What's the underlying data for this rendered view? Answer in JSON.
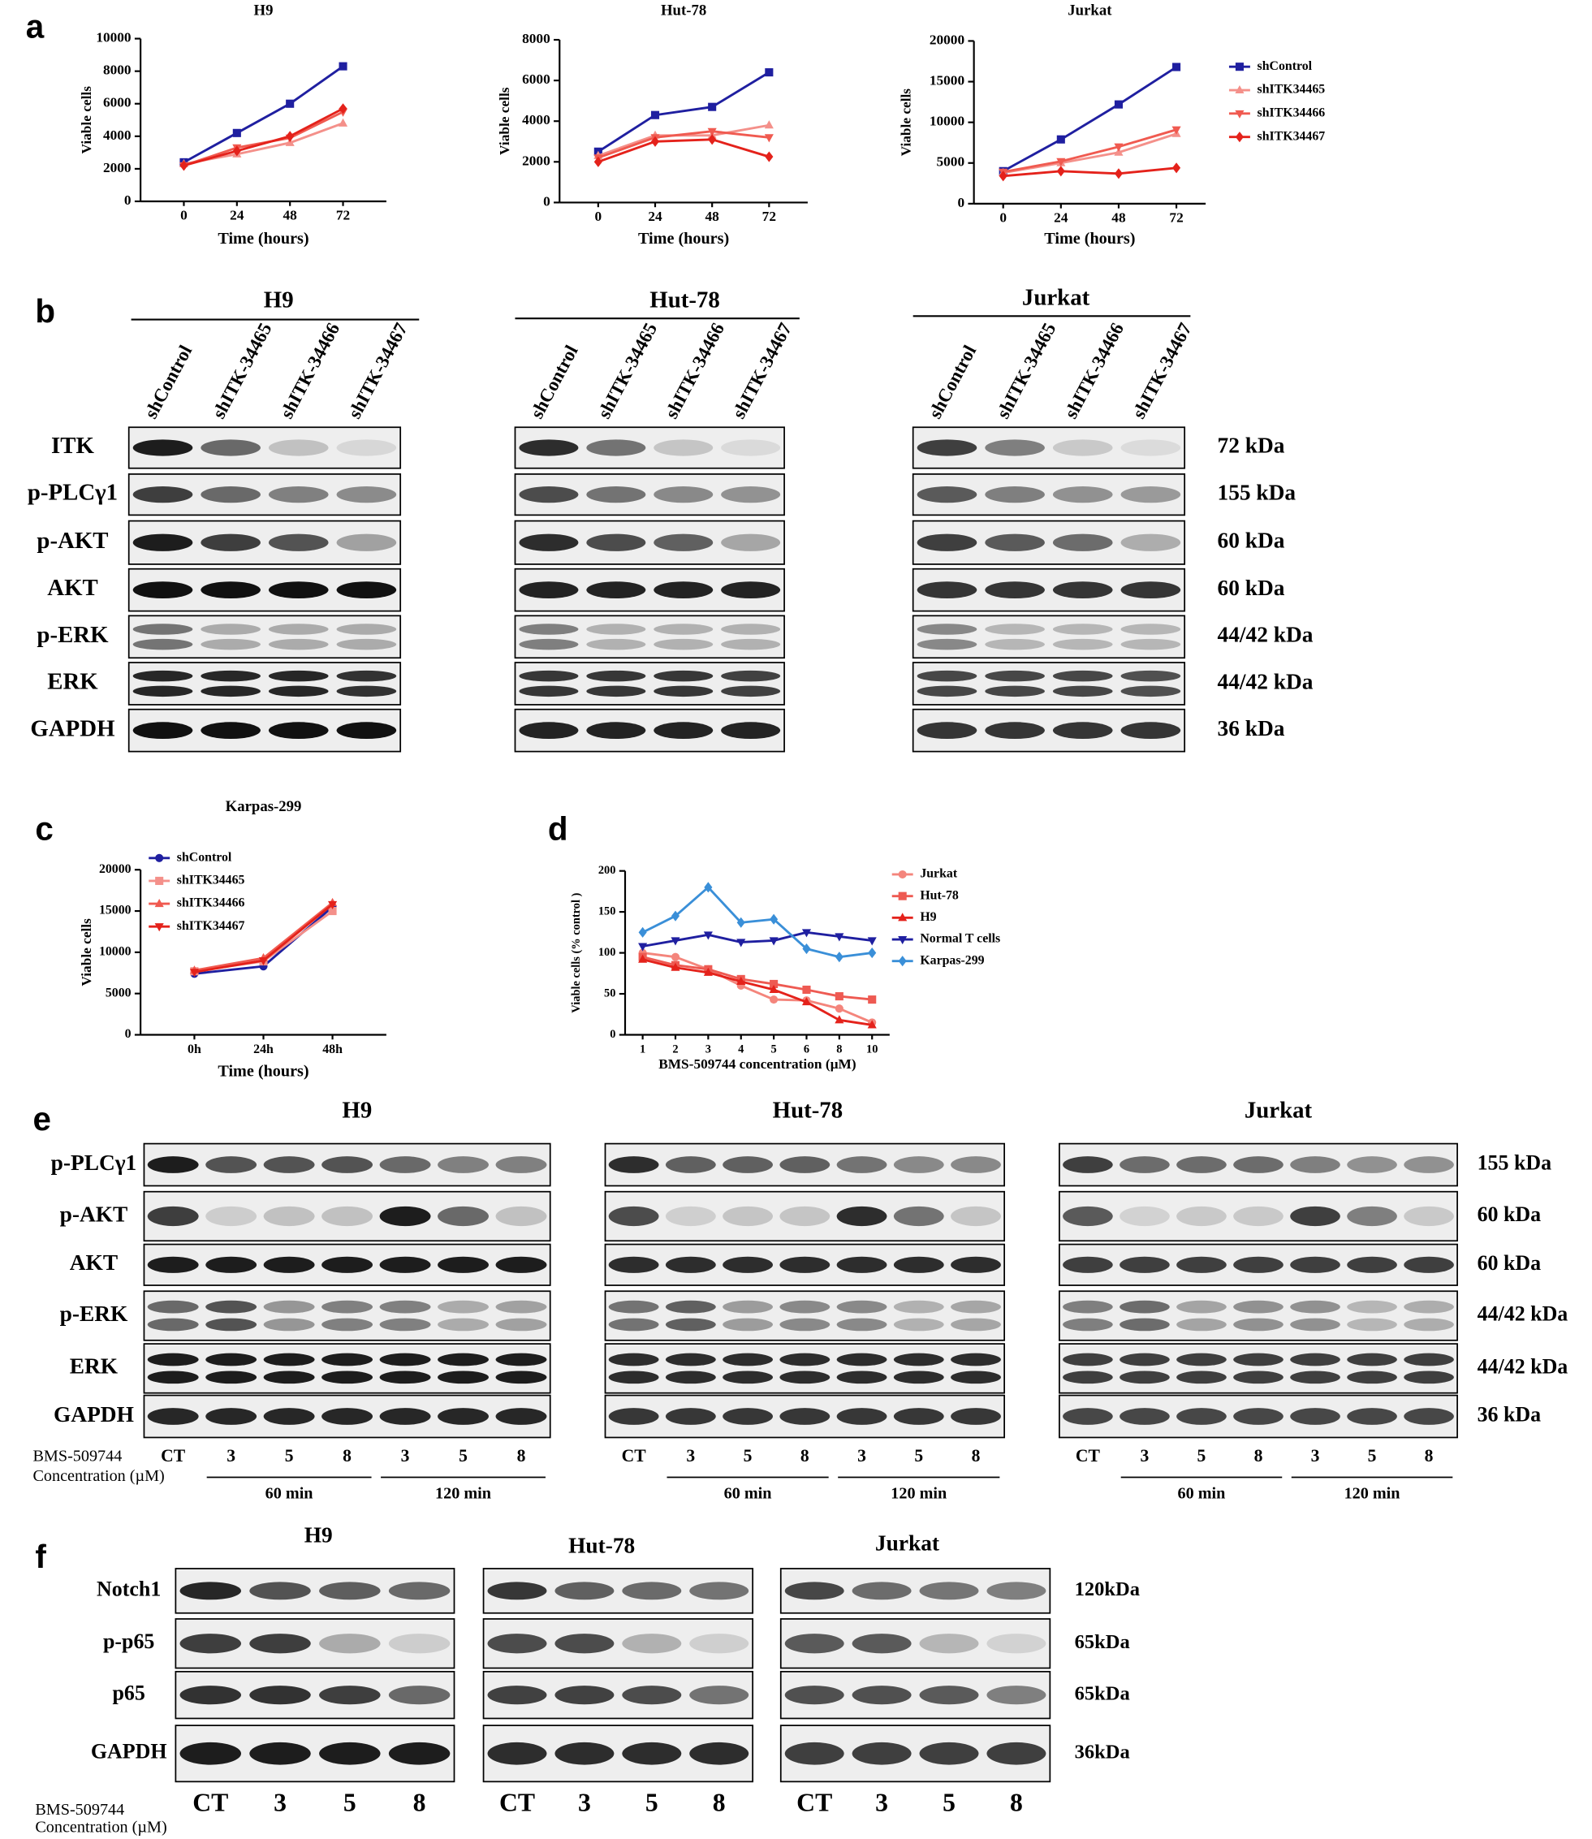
{
  "panel_labels": [
    "a",
    "b",
    "c",
    "d",
    "e",
    "f"
  ],
  "chart_data": [
    {
      "type": "line",
      "title": "H9",
      "xlabel": "Time (hours)",
      "ylabel": "Viable cells",
      "categories": [
        "0",
        "24",
        "48",
        "72"
      ],
      "ylim": [
        0,
        10000
      ],
      "yticks": [
        0,
        2000,
        4000,
        6000,
        8000,
        10000
      ],
      "series": [
        {
          "color": "#1f1fa0",
          "marker": "square",
          "values": [
            2400,
            4200,
            6000,
            8300
          ]
        },
        {
          "color": "#f4908a",
          "marker": "triangle",
          "values": [
            2300,
            2900,
            3600,
            4800
          ]
        },
        {
          "color": "#f05a50",
          "marker": "triangle-down",
          "values": [
            2200,
            3300,
            3900,
            5500
          ]
        },
        {
          "color": "#e4221b",
          "marker": "diamond",
          "values": [
            2200,
            3100,
            4000,
            5700
          ]
        }
      ]
    },
    {
      "type": "line",
      "title": "Hut-78",
      "xlabel": "Time (hours)",
      "ylabel": "Viable cells",
      "categories": [
        "0",
        "24",
        "48",
        "72"
      ],
      "ylim": [
        0,
        8000
      ],
      "yticks": [
        0,
        2000,
        4000,
        6000,
        8000
      ],
      "series": [
        {
          "color": "#1f1fa0",
          "marker": "square",
          "values": [
            2500,
            4300,
            4700,
            6400
          ]
        },
        {
          "color": "#f4908a",
          "marker": "triangle",
          "values": [
            2300,
            3300,
            3300,
            3800
          ]
        },
        {
          "color": "#f05a50",
          "marker": "triangle-down",
          "values": [
            2200,
            3200,
            3500,
            3200
          ]
        },
        {
          "color": "#e4221b",
          "marker": "diamond",
          "values": [
            2000,
            3000,
            3100,
            2250
          ]
        }
      ]
    },
    {
      "type": "line",
      "title": "Jurkat",
      "xlabel": "Time (hours)",
      "ylabel": "Viable cells",
      "categories": [
        "0",
        "24",
        "48",
        "72"
      ],
      "ylim": [
        0,
        20000
      ],
      "yticks": [
        0,
        5000,
        10000,
        15000,
        20000
      ],
      "legend": "right",
      "series": [
        {
          "name": "shControl",
          "color": "#1f1fa0",
          "marker": "square",
          "values": [
            4000,
            7900,
            12200,
            16800
          ]
        },
        {
          "name": "shITK34465",
          "color": "#f4908a",
          "marker": "triangle",
          "values": [
            3800,
            5000,
            6300,
            8600
          ]
        },
        {
          "name": "shITK34466",
          "color": "#f05a50",
          "marker": "triangle-down",
          "values": [
            3900,
            5200,
            7000,
            9100
          ]
        },
        {
          "name": "shITK34467",
          "color": "#e4221b",
          "marker": "diamond",
          "values": [
            3400,
            4000,
            3700,
            4400
          ]
        }
      ]
    },
    {
      "type": "line",
      "title": "Karpas-299",
      "xlabel": "Time (hours)",
      "ylabel": "Viable cells",
      "categories": [
        "0h",
        "24h",
        "48h"
      ],
      "ylim": [
        0,
        20000
      ],
      "yticks": [
        0,
        5000,
        10000,
        15000,
        20000
      ],
      "legend": "upper left",
      "series": [
        {
          "name": "shControl",
          "color": "#1f1fa0",
          "marker": "circle",
          "values": [
            7400,
            8300,
            15500
          ]
        },
        {
          "name": "shITK34465",
          "color": "#f4908a",
          "marker": "square",
          "values": [
            7700,
            8900,
            15000
          ]
        },
        {
          "name": "shITK34466",
          "color": "#f05a50",
          "marker": "triangle",
          "values": [
            7800,
            9300,
            16000
          ]
        },
        {
          "name": "shITK34467",
          "color": "#e4221b",
          "marker": "triangle-down",
          "values": [
            7600,
            9000,
            15800
          ]
        }
      ]
    },
    {
      "type": "line",
      "xlabel": "BMS-509744 concentration (µM)",
      "ylabel": "Viable cells (% control )",
      "categories": [
        "1",
        "2",
        "3",
        "4",
        "5",
        "6",
        "8",
        "10"
      ],
      "ylim": [
        0,
        200
      ],
      "yticks": [
        0,
        50,
        100,
        150,
        200
      ],
      "legend": "right",
      "series": [
        {
          "name": "Jurkat",
          "color": "#f4857c",
          "marker": "circle",
          "values": [
            100,
            95,
            80,
            60,
            43,
            42,
            32,
            15
          ]
        },
        {
          "name": "Hut-78",
          "color": "#ee5a52",
          "marker": "square",
          "values": [
            95,
            85,
            80,
            68,
            62,
            55,
            47,
            43
          ]
        },
        {
          "name": "H9",
          "color": "#e4221b",
          "marker": "triangle",
          "values": [
            92,
            82,
            76,
            65,
            55,
            40,
            18,
            12
          ]
        },
        {
          "name": "Normal T cells",
          "color": "#1f1fa0",
          "marker": "triangle-down",
          "values": [
            108,
            115,
            122,
            113,
            115,
            125,
            120,
            115
          ]
        },
        {
          "name": "Karpas-299",
          "color": "#3a8fd8",
          "marker": "diamond",
          "values": [
            125,
            145,
            180,
            137,
            141,
            105,
            95,
            100
          ]
        }
      ]
    }
  ],
  "blots": [
    {
      "cell_lines": [
        "H9",
        "Hut-78",
        "Jurkat"
      ],
      "lanes": [
        "shControl",
        "shITK-34465",
        "shITK-34466",
        "shITK-34467"
      ],
      "rows": [
        {
          "protein": "ITK",
          "size": "72 kDa"
        },
        {
          "protein": "p-PLCγ1",
          "size": "155 kDa"
        },
        {
          "protein": "p-AKT",
          "size": "60 kDa"
        },
        {
          "protein": "AKT",
          "size": "60 kDa"
        },
        {
          "protein": "p-ERK",
          "size": "44/42 kDa"
        },
        {
          "protein": "ERK",
          "size": "44/42 kDa"
        },
        {
          "protein": "GAPDH",
          "size": "36 kDa"
        }
      ]
    },
    {
      "cell_lines": [
        "H9",
        "Hut-78",
        "Jurkat"
      ],
      "treatment": [
        "BMS-509744",
        "Concentration (µM)"
      ],
      "lanes": [
        "CT",
        "3",
        "5",
        "8",
        "3",
        "5",
        "8"
      ],
      "groups": [
        "60 min",
        "120 min"
      ],
      "rows": [
        {
          "protein": "p-PLCγ1",
          "size": "155 kDa"
        },
        {
          "protein": "p-AKT",
          "size": "60 kDa"
        },
        {
          "protein": "AKT",
          "size": "60 kDa"
        },
        {
          "protein": "p-ERK",
          "size": "44/42 kDa"
        },
        {
          "protein": "ERK",
          "size": "44/42 kDa"
        },
        {
          "protein": "GAPDH",
          "size": "36 kDa"
        }
      ]
    },
    {
      "cell_lines": [
        "H9",
        "Hut-78",
        "Jurkat"
      ],
      "treatment": [
        "BMS-509744",
        "Concentration (µM)"
      ],
      "lanes": [
        "CT",
        "3",
        "5",
        "8"
      ],
      "rows": [
        {
          "protein": "Notch1",
          "size": "120kDa"
        },
        {
          "protein": "p-p65",
          "size": "65kDa"
        },
        {
          "protein": "p65",
          "size": "65kDa"
        },
        {
          "protein": "GAPDH",
          "size": "36kDa"
        }
      ]
    }
  ]
}
